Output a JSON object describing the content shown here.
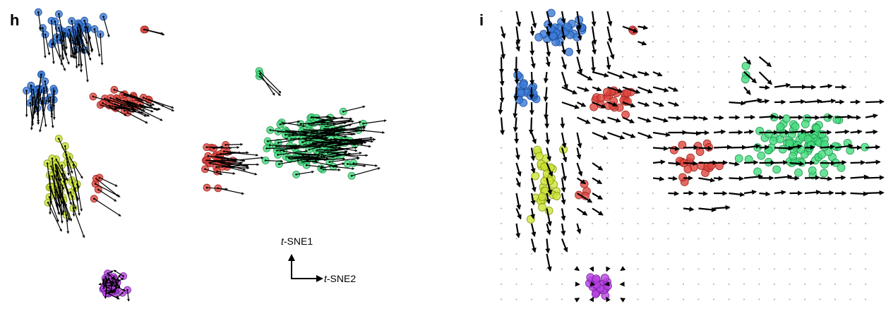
{
  "panels": [
    {
      "label": "h"
    },
    {
      "label": "i"
    }
  ],
  "axis_key": {
    "vertical": {
      "italic": "t",
      "rest": "-SNE1"
    },
    "horizontal": {
      "italic": "t",
      "rest": "-SNE2"
    }
  }
}
